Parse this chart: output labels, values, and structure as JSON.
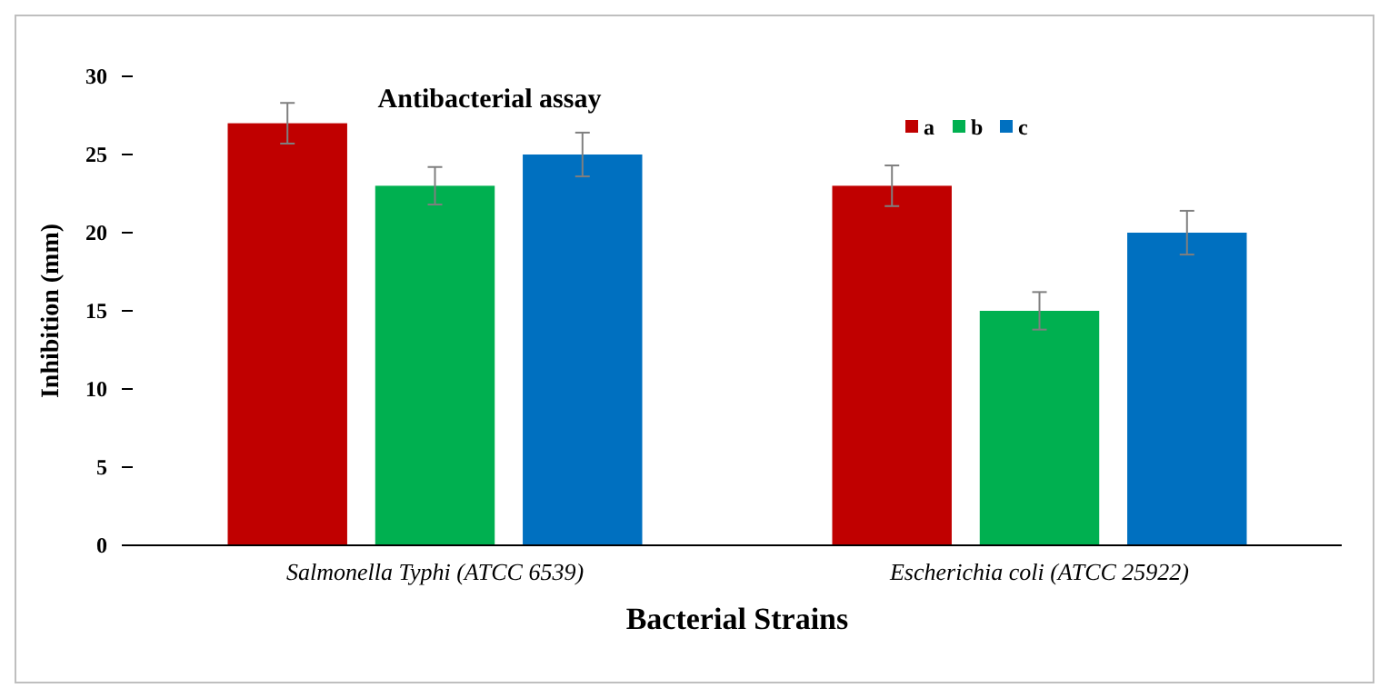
{
  "chart_data": {
    "type": "bar",
    "title": "Antibacterial assay",
    "xlabel": "Bacterial Strains",
    "ylabel": "Inhibition (mm)",
    "categories": [
      "Salmonella Typhi (ATCC 6539)",
      "Escherichia coli (ATCC 25922)"
    ],
    "series": [
      {
        "name": "a",
        "color": "#c00000",
        "values": [
          27,
          23
        ],
        "errors": [
          1.3,
          1.3
        ]
      },
      {
        "name": "b",
        "color": "#00b050",
        "values": [
          23,
          15
        ],
        "errors": [
          1.2,
          1.2
        ]
      },
      {
        "name": "c",
        "color": "#0070c0",
        "values": [
          25,
          20
        ],
        "errors": [
          1.4,
          1.4
        ]
      }
    ],
    "ylim": [
      0,
      30
    ],
    "yticks": [
      0,
      5,
      10,
      15,
      20,
      25,
      30
    ],
    "grid": false,
    "legend": "top right"
  }
}
